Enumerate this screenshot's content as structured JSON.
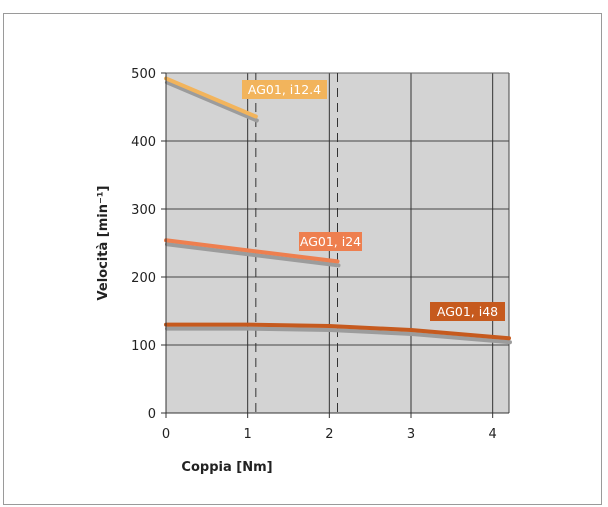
{
  "chart_data": {
    "type": "line",
    "xlabel": "Coppia [Nm]",
    "ylabel": "Velocità [min⁻¹]",
    "xlim": [
      0,
      4.2
    ],
    "ylim": [
      0,
      500
    ],
    "x_ticks": [
      "0",
      "1",
      "2",
      "3",
      "4"
    ],
    "y_ticks": [
      "0",
      "100",
      "200",
      "300",
      "400",
      "500"
    ],
    "grid": true,
    "plot_background": "#d3d3d3",
    "limit_lines": [
      1.1,
      2.1
    ],
    "series": [
      {
        "name": "AG01, i12.4",
        "color": "#f2b45c",
        "x": [
          0,
          1.1
        ],
        "y": [
          492,
          436
        ]
      },
      {
        "name": "AG01, i24",
        "color": "#ee7f4f",
        "x": [
          0,
          2.1
        ],
        "y": [
          254,
          223
        ]
      },
      {
        "name": "AG01, i48",
        "color": "#c65a1e",
        "x": [
          0,
          1,
          2,
          3,
          4.2
        ],
        "y": [
          130,
          130,
          128,
          122,
          110
        ]
      }
    ],
    "annotations": [
      {
        "text": "AG01, i12.4",
        "series": 0,
        "color": "#f2b45c"
      },
      {
        "text": "AG01, i24",
        "series": 1,
        "color": "#ee7f4f"
      },
      {
        "text": "AG01, i48",
        "series": 2,
        "color": "#c65a1e"
      }
    ]
  }
}
